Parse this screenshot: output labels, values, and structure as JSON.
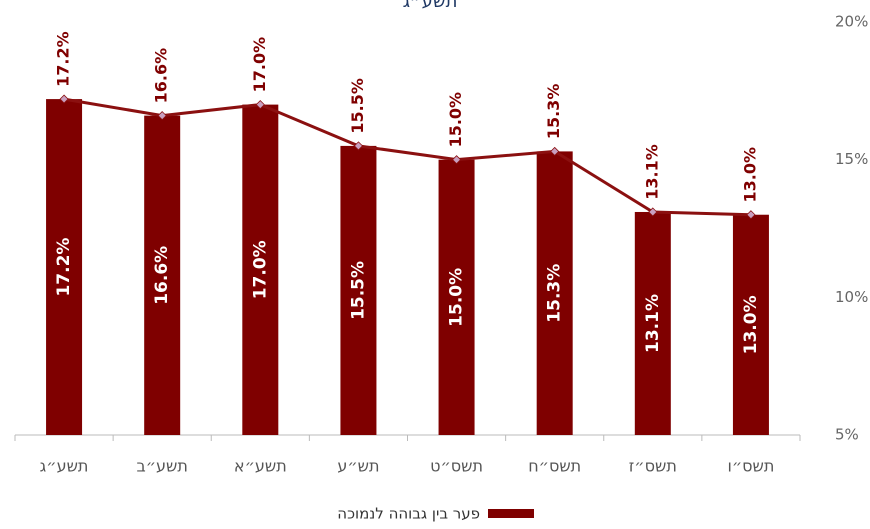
{
  "chart_data": {
    "type": "bar-line",
    "title": "תשע״ג",
    "categories": [
      "תשע״ג",
      "תשע״ב",
      "תשע״א",
      "תש״ע",
      "תשס״ט",
      "תשס״ח",
      "תשס״ז",
      "תשס״ו"
    ],
    "series": [
      {
        "name": "פער בין גבוהה לנמוכה",
        "color": "#7f0000",
        "line_color": "#8b1010",
        "marker_color": "#c9a0c0",
        "values": [
          17.2,
          16.6,
          17.0,
          15.5,
          15.0,
          15.3,
          13.1,
          13.0
        ],
        "value_labels": [
          "17.2%",
          "16.6%",
          "17.0%",
          "15.5%",
          "15.0%",
          "15.3%",
          "13.1%",
          "13.0%"
        ]
      }
    ],
    "ylim": [
      5,
      20
    ],
    "yticks": [
      {
        "value": 5,
        "label": "5%"
      },
      {
        "value": 10,
        "label": "10%"
      },
      {
        "value": 15,
        "label": "15%"
      },
      {
        "value": 20,
        "label": "20%"
      }
    ],
    "y_axis_side": "right",
    "legend": "bottom"
  }
}
